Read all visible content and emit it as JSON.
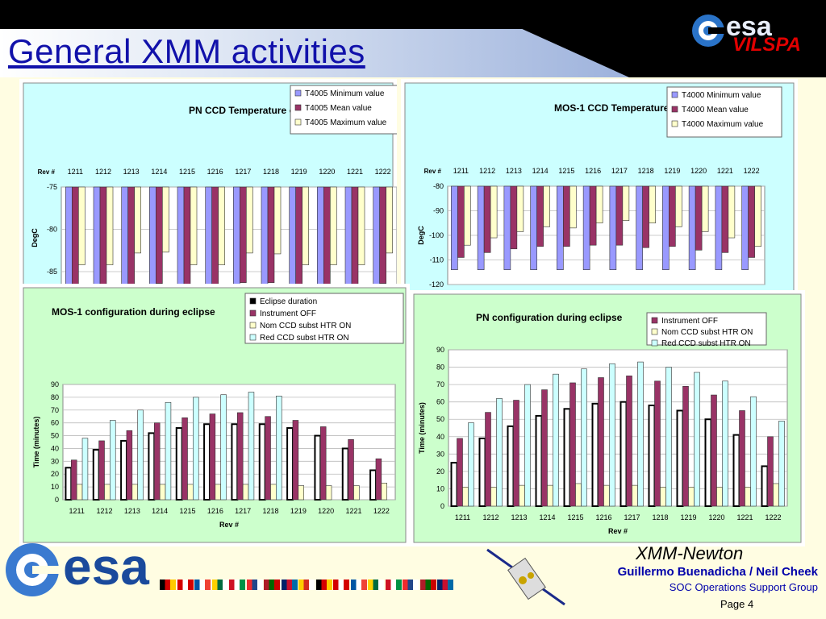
{
  "slide": {
    "title": "General XMM activities",
    "logo_top": {
      "text": "esa",
      "subtext": "VILSPA"
    },
    "footer_logo": "esa",
    "mission": "XMM-Newton",
    "authors": "Guillermo Buenadicha / Neil Cheek",
    "group": "SOC Operations Support Group",
    "page": "Page 4",
    "flag_colors": [
      "#000000",
      "#d40000",
      "#ffcc00",
      "#d40000",
      "#ffffff",
      "#d40000",
      "#0055a4",
      "#ffffff",
      "#ef4135",
      "#ffd100",
      "#006b3f",
      "#ffffff",
      "#ce1126",
      "#ffffff",
      "#009246",
      "#ef2b2d",
      "#21468b",
      "#ffffff",
      "#ae1c28",
      "#006600",
      "#cc0000",
      "#012169",
      "#c8102e",
      "#006aa7",
      "#fecc00",
      "#d52b1e",
      "#ffffff"
    ]
  },
  "colors": {
    "min": "#9999ff",
    "mean": "#993366",
    "max": "#ffffcc",
    "eclipse": "#000000",
    "off": "#993366",
    "nom": "#ffffcc",
    "red": "#ccffff",
    "plot_bg": "#ccffff",
    "ecl_bg": "#ccffcc"
  },
  "chart_data": [
    {
      "type": "bar",
      "title": "PN CCD Temperature evolution",
      "xlabel": "Rev #",
      "ylabel": "DegC",
      "categories": [
        "1211",
        "1212",
        "1213",
        "1214",
        "1215",
        "1216",
        "1217",
        "1218",
        "1219",
        "1220",
        "1221",
        "1222"
      ],
      "yticks": [
        "-75",
        "-80",
        "-85"
      ],
      "ylim": [
        -87,
        -75
      ],
      "series": [
        {
          "name": "T4005 Minimum value",
          "values": [
            -86.8,
            -86.9,
            -86.8,
            -86.7,
            -86.8,
            -86.8,
            -86.7,
            -86.8,
            -86.9,
            -86.9,
            -86.8,
            -86.8
          ]
        },
        {
          "name": "T4005 Mean value",
          "values": [
            -86.5,
            -86.6,
            -86.5,
            -86.4,
            -86.5,
            -86.5,
            -86.3,
            -86.3,
            -86.5,
            -86.6,
            -86.5,
            -86.4
          ]
        },
        {
          "name": "T4005 Maximum value",
          "values": [
            -84.2,
            -84.2,
            -82.8,
            -82.7,
            -84.2,
            -84.2,
            -82.8,
            -82.9,
            -84.2,
            -84.2,
            -84.2,
            -82.8
          ]
        }
      ],
      "legend": "top-right"
    },
    {
      "type": "bar",
      "title": "MOS-1 CCD Temperature evolution",
      "xlabel": "Rev #",
      "ylabel": "DegC",
      "categories": [
        "1211",
        "1212",
        "1213",
        "1214",
        "1215",
        "1216",
        "1217",
        "1218",
        "1219",
        "1220",
        "1221",
        "1222"
      ],
      "yticks": [
        "-80",
        "-90",
        "-100",
        "-110",
        "-120"
      ],
      "ylim": [
        -120,
        -80
      ],
      "series": [
        {
          "name": "T4000 Minimum value",
          "values": [
            -114,
            -114,
            -114,
            -114,
            -114,
            -114,
            -114,
            -114,
            -114,
            -114,
            -114,
            -114
          ]
        },
        {
          "name": "T4000 Mean value",
          "values": [
            -109,
            -107,
            -105.5,
            -104.5,
            -104.5,
            -104,
            -104,
            -105,
            -104.5,
            -106,
            -107,
            -109
          ]
        },
        {
          "name": "T4000 Maximum value",
          "values": [
            -104,
            -101,
            -98.5,
            -96.5,
            -97,
            -95,
            -94,
            -95,
            -96.5,
            -98.5,
            -101,
            -104.5
          ]
        }
      ],
      "legend": "top-right"
    },
    {
      "type": "bar",
      "title": "MOS-1 configuration during eclipse",
      "xlabel": "Rev #",
      "ylabel": "Time (minutes)",
      "categories": [
        "1211",
        "1212",
        "1213",
        "1214",
        "1215",
        "1216",
        "1217",
        "1218",
        "1219",
        "1220",
        "1221",
        "1222"
      ],
      "yticks": [
        "0",
        "10",
        "20",
        "30",
        "40",
        "50",
        "60",
        "70",
        "80",
        "90"
      ],
      "ylim": [
        0,
        90
      ],
      "series": [
        {
          "name": "Eclipse duration",
          "values": [
            25,
            39,
            46,
            52,
            56,
            59,
            59,
            59,
            56,
            50,
            40,
            23
          ]
        },
        {
          "name": "Instrument OFF",
          "values": [
            31,
            46,
            54,
            60,
            64,
            67,
            68,
            65,
            62,
            57,
            47,
            32
          ]
        },
        {
          "name": "Nom CCD subst HTR ON",
          "values": [
            12,
            12,
            12,
            12,
            12,
            12,
            12,
            12,
            11,
            11,
            11,
            13
          ]
        },
        {
          "name": "Red CCD subst HTR ON",
          "values": [
            48,
            62,
            70,
            76,
            80,
            82,
            84,
            81,
            null,
            null,
            null,
            null
          ]
        }
      ],
      "legend": "top-right"
    },
    {
      "type": "bar",
      "title": "PN configuration during eclipse",
      "xlabel": "Rev #",
      "ylabel": "Time (minutes)",
      "categories": [
        "1211",
        "1212",
        "1213",
        "1214",
        "1215",
        "1216",
        "1217",
        "1218",
        "1219",
        "1220",
        "1221",
        "1222"
      ],
      "yticks": [
        "0",
        "10",
        "20",
        "30",
        "40",
        "50",
        "60",
        "70",
        "80",
        "90"
      ],
      "ylim": [
        0,
        90
      ],
      "series": [
        {
          "name": "Instrument OFF",
          "values": [
            39,
            54,
            61,
            67,
            71,
            74,
            75,
            72,
            69,
            64,
            55,
            40
          ]
        },
        {
          "name": "Nom CCD subst HTR ON",
          "values": [
            11,
            11,
            12,
            12,
            13,
            12,
            12,
            11,
            11,
            11,
            11,
            13
          ]
        },
        {
          "name": "Red CCD subst HTR ON",
          "values": [
            48,
            62,
            70,
            76,
            79,
            82,
            83,
            80,
            77,
            72,
            63,
            49
          ]
        }
      ],
      "eclipse_values": [
        25,
        39,
        46,
        52,
        56,
        59,
        60,
        58,
        55,
        50,
        41,
        23
      ],
      "legend": "top-right"
    }
  ]
}
